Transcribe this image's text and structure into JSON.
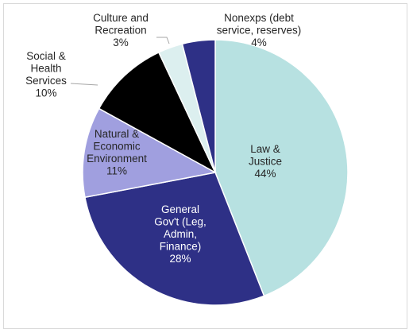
{
  "chart_data": {
    "type": "pie",
    "title": "",
    "slices": [
      {
        "name": "Law & Justice",
        "label_lines": [
          "Law &",
          "Justice"
        ],
        "value": 44,
        "pct_label": "44%",
        "color": "#b7e1e1"
      },
      {
        "name": "General Gov't (Leg, Admin, Finance)",
        "label_lines": [
          "General",
          "Gov't (Leg,",
          "Admin,",
          "Finance)"
        ],
        "value": 28,
        "pct_label": "28%",
        "color": "#2e3086"
      },
      {
        "name": "Natural & Economic Environment",
        "label_lines": [
          "Natural &",
          "Economic",
          "Environment"
        ],
        "value": 11,
        "pct_label": "11%",
        "color": "#a09fdf"
      },
      {
        "name": "Social & Health Services",
        "label_lines": [
          "Social &",
          "Health",
          "Services"
        ],
        "value": 10,
        "pct_label": "10%",
        "color": "#000000"
      },
      {
        "name": "Culture and Recreation",
        "label_lines": [
          "Culture and",
          "Recreation"
        ],
        "value": 3,
        "pct_label": "3%",
        "color": "#dcefef"
      },
      {
        "name": "Nonexps (debt service, reserves)",
        "label_lines": [
          "Nonexps (debt",
          "service, reserves)"
        ],
        "value": 4,
        "pct_label": "4%",
        "color": "#2e3086"
      }
    ],
    "legend": "none",
    "start_angle_deg": 0,
    "direction": "clockwise"
  }
}
